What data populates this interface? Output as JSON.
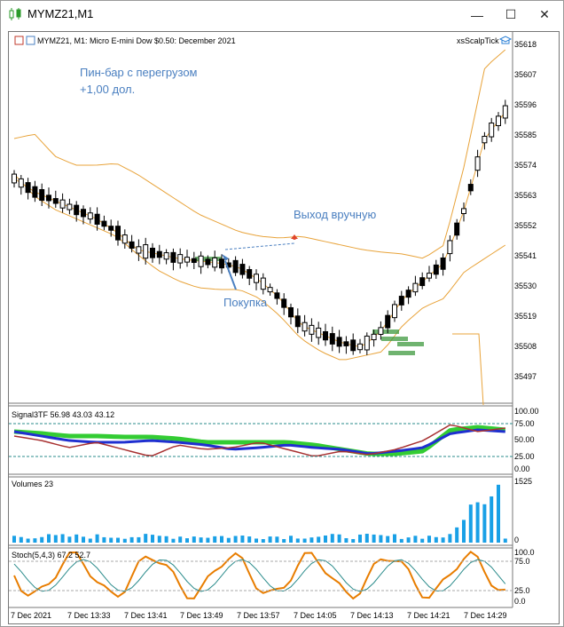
{
  "window": {
    "title": "MYMZ21,M1",
    "controls": {
      "minimize": "—",
      "maximize": "☐",
      "close": "✕"
    }
  },
  "chart_header": {
    "symbol_desc": "MYMZ21, M1:  Micro E-mini Dow $0.50: December 2021",
    "indicator": "xsScalpTick"
  },
  "annotations": {
    "title_line1": "Пин-бар с перегрузом",
    "title_line2": "+1,00 дол.",
    "exit_label": "Выход вручную",
    "buy_label": "Покупка"
  },
  "price_axis": [
    "35618",
    "35607",
    "35596",
    "35585",
    "35574",
    "35563",
    "35552",
    "35541",
    "35530",
    "35519",
    "35508",
    "35497"
  ],
  "signal_panel": {
    "label": "Signal3TF 56.98 43.03 43.12",
    "axis": [
      "100.00",
      "75.00",
      "50.00",
      "25.00",
      "0.00"
    ]
  },
  "volume_panel": {
    "label": "Volumes 23",
    "axis": [
      "1525",
      "0"
    ]
  },
  "stoch_panel": {
    "label": "Stoch(5,4,3) 67.2 52.7",
    "axis": [
      "100.0",
      "75.0",
      "25.0",
      "0.0"
    ]
  },
  "time_axis": [
    "7 Dec 2021",
    "7 Dec 13:33",
    "7 Dec 13:41",
    "7 Dec 13:49",
    "7 Dec 13:57",
    "7 Dec 14:05",
    "7 Dec 14:13",
    "7 Dec 14:21",
    "7 Dec 14:29"
  ],
  "colors": {
    "bands": "#e8a33a",
    "accent_blue": "#4a7fc0",
    "zone_green": "#3f9a3f",
    "sig_blue": "#1f2fd0",
    "sig_red": "#a83232",
    "sig_green": "#33cc33",
    "volume": "#19a0e6",
    "stoch_main": "#e87d00",
    "stoch_signal": "#2a8b8b"
  }
}
